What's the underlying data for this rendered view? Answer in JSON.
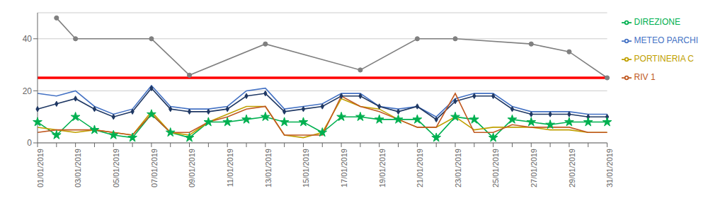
{
  "chart_data": {
    "type": "line",
    "categories": [
      "01/01/2019",
      null,
      "03/01/2019",
      null,
      "05/01/2019",
      null,
      "07/01/2019",
      null,
      "09/01/2019",
      null,
      "11/01/2019",
      null,
      "13/01/2019",
      null,
      "15/01/2019",
      null,
      "17/01/2019",
      null,
      "19/01/2019",
      null,
      "21/01/2019",
      null,
      "23/01/2019",
      null,
      "25/01/2019",
      null,
      "27/01/2019",
      null,
      "29/01/2019",
      null,
      "31/01/2019"
    ],
    "series": [
      {
        "color": "#808080",
        "marker": "circle",
        "values": [
          null,
          48,
          40,
          null,
          null,
          null,
          40,
          null,
          26,
          null,
          null,
          null,
          38,
          null,
          null,
          null,
          null,
          28,
          null,
          null,
          40,
          null,
          40,
          null,
          null,
          null,
          38,
          null,
          35,
          null,
          25
        ]
      },
      {
        "name": "METEO PARCHI",
        "color": "#4472c4",
        "values": [
          19,
          18,
          20,
          14,
          11,
          13,
          22,
          14,
          13,
          13,
          14,
          20,
          21,
          13,
          14,
          15,
          19,
          19,
          14,
          13,
          14,
          10,
          17,
          19,
          19,
          14,
          12,
          12,
          12,
          11,
          11
        ]
      },
      {
        "color": "#1f3864",
        "marker": "diamond",
        "values": [
          13,
          15,
          17,
          13,
          10,
          12,
          21,
          13,
          12,
          12,
          13,
          18,
          19,
          12,
          13,
          14,
          18,
          18,
          14,
          12,
          14,
          9,
          16,
          18,
          18,
          13,
          11,
          11,
          11,
          10,
          10
        ]
      },
      {
        "name": "DIREZIONE",
        "color": "#00b050",
        "marker": "star",
        "values": [
          8,
          3,
          10,
          5,
          3,
          2,
          11,
          4,
          2,
          8,
          8,
          9,
          10,
          8,
          8,
          4,
          10,
          10,
          9,
          9,
          9,
          2,
          10,
          9,
          2,
          9,
          8,
          7,
          8,
          8,
          8
        ]
      },
      {
        "name": "PORTINERIA C",
        "color": "#c0a000",
        "values": [
          6,
          5,
          4,
          5,
          4,
          3,
          12,
          4,
          3,
          8,
          11,
          14,
          14,
          3,
          2,
          4,
          17,
          14,
          13,
          9,
          6,
          6,
          10,
          5,
          6,
          6,
          6,
          5,
          5,
          4,
          4
        ]
      },
      {
        "name": "RIV 1",
        "color": "#c05820",
        "values": [
          4,
          5,
          5,
          5,
          4,
          3,
          11,
          4,
          4,
          8,
          10,
          13,
          14,
          3,
          3,
          3,
          18,
          14,
          12,
          9,
          6,
          6,
          19,
          4,
          4,
          7,
          6,
          6,
          6,
          4,
          4
        ]
      }
    ],
    "reference_lines": [
      {
        "y": 25,
        "color": "#ff0000"
      }
    ],
    "ylim": [
      0,
      50
    ],
    "yticks": [
      0,
      20,
      40
    ],
    "grid": true,
    "legend": "right"
  }
}
